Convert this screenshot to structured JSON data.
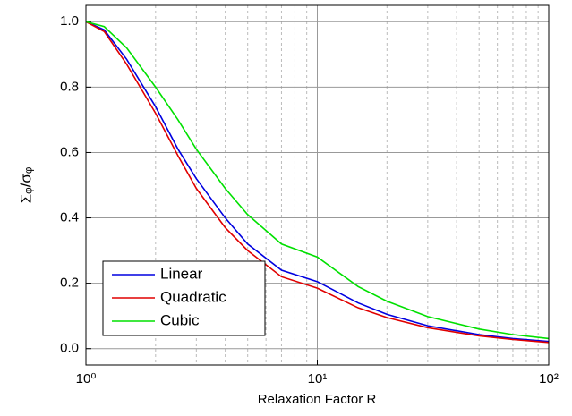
{
  "chart_data": {
    "type": "line",
    "xlabel": "Relaxation Factor R",
    "ylabel": "Σᵩ/σᵩ",
    "xscale": "log",
    "x": [
      1,
      1.2,
      1.5,
      2,
      2.5,
      3,
      4,
      5,
      7,
      10,
      15,
      20,
      30,
      50,
      70,
      100
    ],
    "series": [
      {
        "name": "Linear",
        "color": "#0000e0",
        "values": [
          1,
          0.975,
          0.885,
          0.74,
          0.61,
          0.52,
          0.4,
          0.32,
          0.24,
          0.205,
          0.14,
          0.105,
          0.07,
          0.043,
          0.031,
          0.022
        ]
      },
      {
        "name": "Quadratic",
        "color": "#e00000",
        "values": [
          1,
          0.97,
          0.87,
          0.72,
          0.59,
          0.49,
          0.37,
          0.3,
          0.22,
          0.185,
          0.125,
          0.095,
          0.064,
          0.039,
          0.028,
          0.019
        ]
      },
      {
        "name": "Cubic",
        "color": "#00e000",
        "values": [
          1,
          0.985,
          0.92,
          0.8,
          0.7,
          0.61,
          0.49,
          0.41,
          0.32,
          0.28,
          0.19,
          0.145,
          0.098,
          0.06,
          0.043,
          0.031
        ]
      }
    ],
    "xlim": [
      1,
      100
    ],
    "xticks": [
      {
        "value": 1,
        "label": "10⁰"
      },
      {
        "value": 10,
        "label": "10¹"
      },
      {
        "value": 100,
        "label": "10²"
      }
    ],
    "xminorticks": [
      2,
      3,
      4,
      5,
      6,
      7,
      8,
      9,
      20,
      30,
      40,
      50,
      60,
      70,
      80,
      90
    ],
    "ylim": [
      -0.05,
      1.05
    ],
    "yticks": [
      {
        "value": 0,
        "label": "0.0"
      },
      {
        "value": 0.2,
        "label": "0.2"
      },
      {
        "value": 0.4,
        "label": "0.4"
      },
      {
        "value": 0.6,
        "label": "0.6"
      },
      {
        "value": 0.8,
        "label": "0.8"
      },
      {
        "value": 1,
        "label": "1.0"
      }
    ],
    "grid": true,
    "legend": "lower left"
  }
}
